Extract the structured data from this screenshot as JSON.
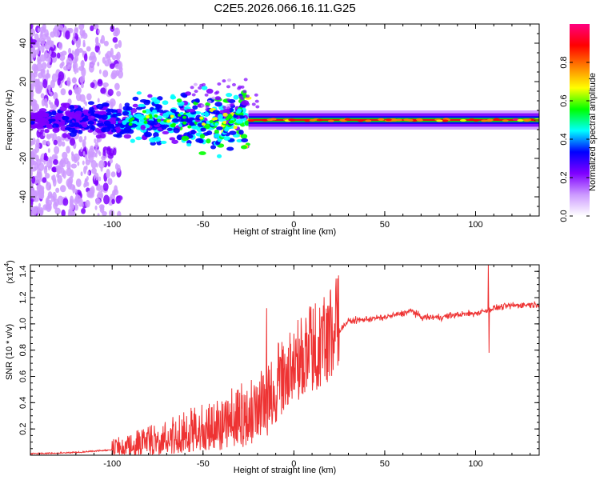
{
  "title": "C2E5.2026.066.16.11.G25",
  "chart_data": [
    {
      "id": "spectrogram",
      "type": "heatmap",
      "xlabel": "Height of straight line (km)",
      "ylabel": "Frequency (Hz)",
      "xlim": [
        -145,
        135
      ],
      "ylim": [
        -50,
        50
      ],
      "xticks": [
        -100,
        -50,
        0,
        50,
        100
      ],
      "xtick_labels": [
        "-100",
        "-50",
        "0",
        "50",
        "100"
      ],
      "yticks": [
        -40,
        -20,
        0,
        20,
        40
      ],
      "ytick_labels": [
        "-40",
        "-20",
        "0",
        "20",
        "40"
      ],
      "colorbar": {
        "label": "Normalized spectral amplitude",
        "range": [
          0.0,
          1.0
        ],
        "ticks": [
          0.0,
          0.2,
          0.4,
          0.6,
          0.8
        ],
        "tick_labels": [
          "0.0",
          "0.2",
          "0.4",
          "0.6",
          "0.8"
        ],
        "colors": [
          "#ffffff",
          "#cc99ff",
          "#7f00ff",
          "#0000ff",
          "#00ffff",
          "#00ff00",
          "#ffff00",
          "#ff8000",
          "#ff0000",
          "#ff0080"
        ]
      },
      "ridge_center_hz": 0,
      "ridge_start_km": -25,
      "branch": {
        "x_start": -42,
        "y_start": -12,
        "x_end": -30,
        "y_end": 5
      }
    },
    {
      "id": "snr",
      "type": "line",
      "xlabel": "Height of straight line (km)",
      "ylabel": "SNR (10 * v/v)",
      "y_scale_label": "(x10",
      "y_scale_exp": "4",
      "y_scale_close": ")",
      "xlim": [
        -145,
        135
      ],
      "ylim": [
        0,
        1.45
      ],
      "xticks": [
        -100,
        -50,
        0,
        50,
        100
      ],
      "xtick_labels": [
        "-100",
        "-50",
        "0",
        "50",
        "100"
      ],
      "yticks": [
        0.2,
        0.4,
        0.6,
        0.8,
        1.0,
        1.2,
        1.4
      ],
      "ytick_labels": [
        "0.2",
        "0.4",
        "0.6",
        "0.8",
        "1.0",
        "1.2",
        "1.4"
      ],
      "color": "#ee3333",
      "trend_x": [
        -145,
        -120,
        -100,
        -80,
        -60,
        -40,
        -25,
        -15,
        -5,
        10,
        20,
        25,
        30,
        50,
        60,
        65,
        70,
        80,
        90,
        100,
        105,
        110,
        120,
        135
      ],
      "trend_y": [
        0.01,
        0.02,
        0.04,
        0.08,
        0.13,
        0.2,
        0.26,
        0.38,
        0.55,
        0.72,
        0.85,
        0.95,
        1.02,
        1.05,
        1.08,
        1.1,
        1.05,
        1.05,
        1.07,
        1.08,
        1.1,
        1.12,
        1.14,
        1.15
      ],
      "spikes": [
        {
          "x": -15,
          "y": 1.12,
          "y_low": 0.15
        },
        {
          "x": 107,
          "y": 1.45,
          "y_low": 0.78
        }
      ]
    }
  ]
}
